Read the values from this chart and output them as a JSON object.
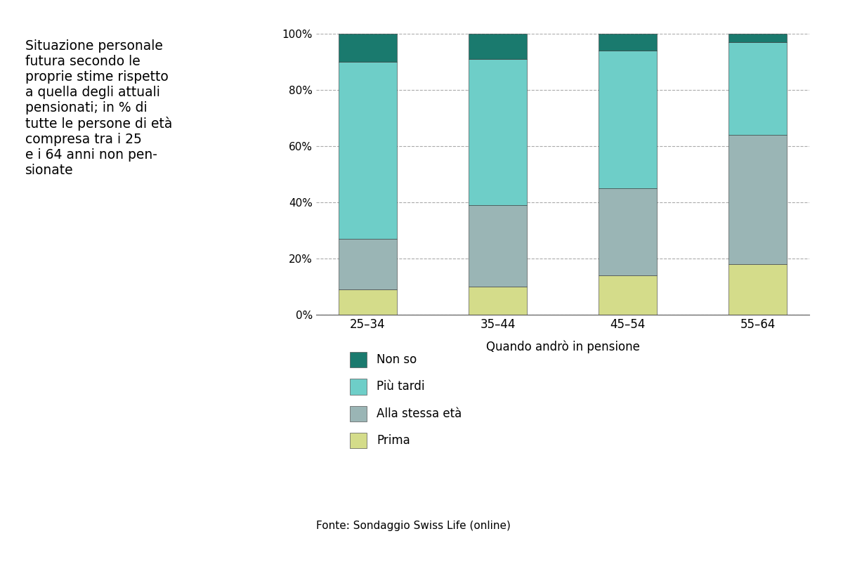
{
  "categories": [
    "25–34",
    "35–44",
    "45–54",
    "55–64"
  ],
  "series": {
    "Prima": [
      9,
      10,
      14,
      18
    ],
    "Alla stessa eta": [
      18,
      29,
      31,
      46
    ],
    "Piu tardi": [
      63,
      52,
      49,
      33
    ],
    "Non so": [
      10,
      9,
      6,
      3
    ]
  },
  "colors": {
    "Prima": "#d4dc8a",
    "Alla stessa eta": "#9ab5b5",
    "Piu tardi": "#6ecec8",
    "Non so": "#1a7a6e"
  },
  "legend_labels": {
    "Non so": "Non so",
    "Piu tardi": "Più tardi",
    "Alla stessa eta": "Alla stessa età",
    "Prima": "Prima"
  },
  "xlabel": "Quando andrò in pensione",
  "title_text": "Situazione personale\nfutura secondo le\nproprie stime rispetto\na quella degli attuali\npensionati; in % di\ntutte le persone di età\ncompresa tra i 25\ne i 64 anni non pen-\nsionate",
  "footnote": "Fonte: Sondaggio Swiss Life (online)",
  "ylim": [
    0,
    100
  ],
  "yticks": [
    0,
    20,
    40,
    60,
    80,
    100
  ],
  "ytick_labels": [
    "0%",
    "20%",
    "40%",
    "60%",
    "80%",
    "100%"
  ],
  "bar_width": 0.45,
  "bg_color": "#ffffff"
}
